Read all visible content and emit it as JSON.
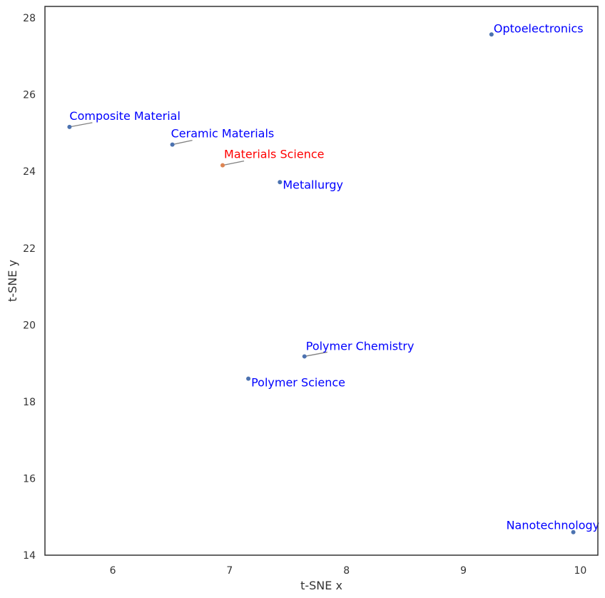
{
  "chart_data": {
    "type": "scatter",
    "xlabel": "t-SNE x",
    "ylabel": "t-SNE y",
    "xlim": [
      5.42,
      10.15
    ],
    "ylim": [
      14.0,
      28.3
    ],
    "xticks": [
      6,
      7,
      8,
      9,
      10
    ],
    "yticks": [
      14,
      16,
      18,
      20,
      22,
      24,
      26,
      28
    ],
    "grid": false,
    "legend": "none",
    "colors": {
      "point_default": "#4c72b0",
      "point_highlight": "#dd8452",
      "label_default": "#0000ff",
      "label_highlight": "#ff0000",
      "leader_line": "#808080",
      "axes": "#333333"
    },
    "points": [
      {
        "label": "Optoelectronics",
        "x": 9.24,
        "y": 27.57,
        "highlight": false
      },
      {
        "label": "Composite Material",
        "x": 5.63,
        "y": 25.16,
        "highlight": false
      },
      {
        "label": "Ceramic Materials",
        "x": 6.51,
        "y": 24.7,
        "highlight": false
      },
      {
        "label": "Materials Science",
        "x": 6.94,
        "y": 24.16,
        "highlight": true
      },
      {
        "label": "Metallurgy",
        "x": 7.43,
        "y": 23.72,
        "highlight": false
      },
      {
        "label": "Polymer Chemistry",
        "x": 7.64,
        "y": 19.18,
        "highlight": false
      },
      {
        "label": "Polymer Science",
        "x": 7.16,
        "y": 18.6,
        "highlight": false
      },
      {
        "label": "Nanotechnology",
        "x": 9.94,
        "y": 14.6,
        "highlight": false
      }
    ]
  }
}
